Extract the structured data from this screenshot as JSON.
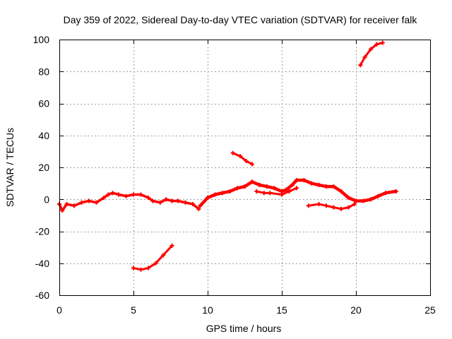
{
  "chart_data": {
    "type": "scatter",
    "title": "Day 359 of 2022, Sidereal Day-to-day VTEC variation (SDTVAR) for receiver falk",
    "xlabel": "GPS time / hours",
    "ylabel": "SDTVAR / TECUs",
    "xlim": [
      0,
      25
    ],
    "ylim": [
      -60,
      100
    ],
    "xticks": [
      0,
      5,
      10,
      15,
      20,
      25
    ],
    "yticks": [
      -60,
      -40,
      -20,
      0,
      20,
      40,
      60,
      80,
      100
    ],
    "grid": true,
    "marker_color": "#ff0000",
    "series": [
      {
        "name": "main-band-a",
        "width": 3.5,
        "points": [
          [
            0.0,
            -3
          ],
          [
            0.2,
            -7
          ],
          [
            0.5,
            -3
          ],
          [
            1.0,
            -4
          ],
          [
            1.5,
            -2
          ],
          [
            2.0,
            -1
          ],
          [
            2.5,
            -2
          ],
          [
            3.0,
            1
          ],
          [
            3.3,
            3
          ],
          [
            3.6,
            4
          ],
          [
            4.0,
            3
          ],
          [
            4.5,
            2
          ],
          [
            5.0,
            3
          ],
          [
            5.5,
            3
          ],
          [
            6.0,
            1
          ],
          [
            6.3,
            -1
          ],
          [
            6.8,
            -2
          ],
          [
            7.2,
            0
          ],
          [
            7.6,
            -1
          ],
          [
            8.0,
            -1
          ],
          [
            8.5,
            -2
          ],
          [
            9.0,
            -3
          ],
          [
            9.4,
            -6
          ]
        ]
      },
      {
        "name": "main-band-b",
        "width": 4.5,
        "points": [
          [
            9.5,
            -4
          ],
          [
            10.0,
            1
          ],
          [
            10.5,
            3
          ],
          [
            11.0,
            4
          ],
          [
            11.5,
            5
          ],
          [
            12.0,
            7
          ],
          [
            12.5,
            8
          ],
          [
            13.0,
            11
          ],
          [
            13.5,
            9
          ],
          [
            14.0,
            8
          ],
          [
            14.5,
            7
          ],
          [
            15.0,
            5
          ],
          [
            15.3,
            6
          ],
          [
            15.7,
            9
          ],
          [
            16.0,
            12
          ],
          [
            16.5,
            12
          ],
          [
            17.0,
            10
          ],
          [
            17.5,
            9
          ],
          [
            18.0,
            8
          ],
          [
            18.5,
            8
          ],
          [
            19.0,
            5
          ],
          [
            19.5,
            1
          ],
          [
            20.0,
            -1
          ],
          [
            20.5,
            -1
          ],
          [
            21.0,
            0
          ],
          [
            21.5,
            2
          ],
          [
            22.0,
            4
          ],
          [
            22.7,
            5
          ]
        ]
      },
      {
        "name": "main-band-b-lower",
        "width": 3.0,
        "points": [
          [
            13.3,
            5
          ],
          [
            13.8,
            4
          ],
          [
            14.2,
            4
          ],
          [
            15.0,
            3
          ],
          [
            15.5,
            5
          ],
          [
            16.0,
            7
          ]
        ]
      },
      {
        "name": "mid-lower-arc",
        "width": 3.0,
        "points": [
          [
            16.8,
            -4
          ],
          [
            17.5,
            -3
          ],
          [
            18.0,
            -4
          ],
          [
            18.5,
            -5
          ],
          [
            19.0,
            -6
          ],
          [
            19.5,
            -5
          ],
          [
            19.9,
            -3
          ]
        ]
      },
      {
        "name": "lower-arc",
        "width": 3.0,
        "points": [
          [
            5.0,
            -43
          ],
          [
            5.5,
            -44
          ],
          [
            6.0,
            -43
          ],
          [
            6.5,
            -40
          ],
          [
            7.0,
            -35
          ],
          [
            7.6,
            -29
          ]
        ]
      },
      {
        "name": "short-arc",
        "width": 3.0,
        "points": [
          [
            11.7,
            29
          ],
          [
            12.2,
            27
          ],
          [
            12.6,
            24
          ],
          [
            13.0,
            22
          ]
        ]
      },
      {
        "name": "upper-arc",
        "width": 3.0,
        "points": [
          [
            20.3,
            84
          ],
          [
            20.6,
            89
          ],
          [
            21.0,
            94
          ],
          [
            21.4,
            97
          ],
          [
            21.8,
            98
          ]
        ]
      }
    ]
  }
}
